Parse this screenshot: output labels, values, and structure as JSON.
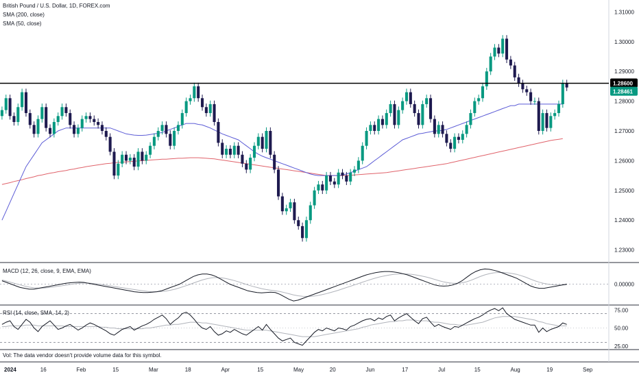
{
  "header": {
    "symbol": "British Pound / U.S. Dollar, 1D, FOREX.com",
    "sma200": "SMA (200, close)",
    "sma50": "SMA (50, close)"
  },
  "macd_label": "MACD (12, 26, close, 9, EMA, EMA)",
  "rsi_label": "RSI (14, close, SMA, 14, 2)",
  "volume_note": "Vol: The data vendor doesn't provide volume data for this symbol.",
  "colors": {
    "up": "#089981",
    "down": "#1e1a4f",
    "sma50": "#5b5bd6",
    "sma200": "#e0626a",
    "resistance": "#000000",
    "price_badge": "#089981",
    "grid": "#e6e9ee"
  },
  "chart_data": {
    "type": "candlestick",
    "x_tick_labels": [
      "2024",
      "16",
      "Feb",
      "15",
      "Mar",
      "18",
      "Apr",
      "15",
      "May",
      "20",
      "Jun",
      "17",
      "Jul",
      "15",
      "Aug",
      "19",
      "Sep"
    ],
    "price_axis": {
      "ticks": [
        "1.31000",
        "1.30000",
        "1.29000",
        "1.28000",
        "1.27000",
        "1.26000",
        "1.25000",
        "1.24000",
        "1.23000"
      ],
      "range": [
        1.226,
        1.314
      ]
    },
    "resistance_level": 1.286,
    "resistance_label": "1.28600",
    "last_price": 1.28461,
    "last_price_label": "1.28461",
    "close": [
      1.277,
      1.281,
      1.275,
      1.273,
      1.278,
      1.283,
      1.276,
      1.272,
      1.269,
      1.274,
      1.278,
      1.271,
      1.269,
      1.273,
      1.275,
      1.278,
      1.276,
      1.272,
      1.269,
      1.271,
      1.274,
      1.275,
      1.274,
      1.273,
      1.272,
      1.27,
      1.268,
      1.263,
      1.255,
      1.259,
      1.262,
      1.26,
      1.261,
      1.258,
      1.263,
      1.26,
      1.262,
      1.265,
      1.268,
      1.27,
      1.272,
      1.269,
      1.265,
      1.27,
      1.272,
      1.276,
      1.28,
      1.281,
      1.285,
      1.281,
      1.278,
      1.276,
      1.279,
      1.273,
      1.266,
      1.262,
      1.264,
      1.262,
      1.265,
      1.262,
      1.259,
      1.257,
      1.261,
      1.265,
      1.268,
      1.264,
      1.27,
      1.262,
      1.257,
      1.248,
      1.243,
      1.244,
      1.246,
      1.24,
      1.238,
      1.234,
      1.24,
      1.245,
      1.25,
      1.252,
      1.25,
      1.255,
      1.253,
      1.252,
      1.256,
      1.255,
      1.253,
      1.256,
      1.257,
      1.26,
      1.265,
      1.27,
      1.272,
      1.27,
      1.274,
      1.272,
      1.276,
      1.279,
      1.272,
      1.277,
      1.28,
      1.283,
      1.279,
      1.276,
      1.272,
      1.279,
      1.281,
      1.274,
      1.269,
      1.272,
      1.269,
      1.266,
      1.264,
      1.268,
      1.267,
      1.269,
      1.272,
      1.276,
      1.28,
      1.281,
      1.285,
      1.29,
      1.295,
      1.298,
      1.296,
      1.301,
      1.294,
      1.292,
      1.288,
      1.286,
      1.284,
      1.283,
      1.28,
      1.28,
      1.27,
      1.276,
      1.271,
      1.275,
      1.276,
      1.279,
      1.286,
      1.2846
    ],
    "sma50": [
      1.24,
      1.243,
      1.246,
      1.249,
      1.252,
      1.255,
      1.258,
      1.26,
      1.262,
      1.264,
      1.266,
      1.267,
      1.268,
      1.269,
      1.27,
      1.2705,
      1.271,
      1.271,
      1.271,
      1.271,
      1.271,
      1.271,
      1.271,
      1.271,
      1.271,
      1.271,
      1.271,
      1.271,
      1.2705,
      1.27,
      1.2695,
      1.269,
      1.2688,
      1.2686,
      1.2685,
      1.2685,
      1.2686,
      1.2688,
      1.269,
      1.2692,
      1.2695,
      1.27,
      1.2705,
      1.271,
      1.2715,
      1.272,
      1.2725,
      1.2725,
      1.2725,
      1.2722,
      1.272,
      1.2715,
      1.271,
      1.2703,
      1.2697,
      1.269,
      1.2685,
      1.268,
      1.2675,
      1.267,
      1.266,
      1.265,
      1.264,
      1.263,
      1.2622,
      1.2615,
      1.261,
      1.2605,
      1.26,
      1.2595,
      1.259,
      1.2585,
      1.258,
      1.2575,
      1.257,
      1.2565,
      1.256,
      1.2555,
      1.2552,
      1.255,
      1.255,
      1.255,
      1.255,
      1.255,
      1.255,
      1.2552,
      1.2555,
      1.256,
      1.2565,
      1.257,
      1.2575,
      1.258,
      1.259,
      1.26,
      1.261,
      1.262,
      1.263,
      1.264,
      1.265,
      1.266,
      1.267,
      1.2675,
      1.268,
      1.2685,
      1.269,
      1.2692,
      1.2695,
      1.2697,
      1.27,
      1.27,
      1.2702,
      1.2705,
      1.271,
      1.2715,
      1.272,
      1.2725,
      1.273,
      1.2735,
      1.274,
      1.2745,
      1.275,
      1.2755,
      1.276,
      1.2765,
      1.277,
      1.2775,
      1.278,
      1.2785,
      1.2785,
      1.279,
      1.279,
      1.279,
      1.279,
      1.279,
      1.279,
      1.279,
      1.279,
      1.279,
      1.279,
      1.279,
      1.279
    ],
    "sma200": [
      1.252,
      1.2523,
      1.2526,
      1.253,
      1.2533,
      1.2536,
      1.254,
      1.2543,
      1.2546,
      1.255,
      1.2552,
      1.2555,
      1.2558,
      1.256,
      1.2563,
      1.2565,
      1.2567,
      1.257,
      1.2572,
      1.2575,
      1.2577,
      1.258,
      1.2582,
      1.2584,
      1.2586,
      1.2588,
      1.259,
      1.2591,
      1.2593,
      1.2594,
      1.2595,
      1.2596,
      1.2597,
      1.2598,
      1.2599,
      1.26,
      1.2601,
      1.2602,
      1.2603,
      1.2604,
      1.2605,
      1.2605,
      1.2606,
      1.2607,
      1.2608,
      1.2608,
      1.2609,
      1.261,
      1.261,
      1.261,
      1.2609,
      1.2608,
      1.2607,
      1.2606,
      1.2604,
      1.2602,
      1.26,
      1.2598,
      1.2596,
      1.2594,
      1.2592,
      1.259,
      1.2588,
      1.2586,
      1.2584,
      1.2582,
      1.258,
      1.2578,
      1.2576,
      1.2574,
      1.2572,
      1.257,
      1.2568,
      1.2566,
      1.2564,
      1.2562,
      1.256,
      1.2558,
      1.2556,
      1.2554,
      1.2552,
      1.255,
      1.255,
      1.255,
      1.255,
      1.255,
      1.255,
      1.2551,
      1.2552,
      1.2553,
      1.2554,
      1.2555,
      1.2556,
      1.2557,
      1.2558,
      1.2559,
      1.256,
      1.2562,
      1.2564,
      1.2566,
      1.2568,
      1.257,
      1.2572,
      1.2574,
      1.2576,
      1.2578,
      1.258,
      1.2582,
      1.2584,
      1.2586,
      1.2588,
      1.259,
      1.2593,
      1.2596,
      1.2599,
      1.2602,
      1.2605,
      1.2608,
      1.2611,
      1.2614,
      1.2617,
      1.262,
      1.2623,
      1.2626,
      1.2629,
      1.2632,
      1.2635,
      1.2638,
      1.2641,
      1.2644,
      1.2647,
      1.265,
      1.2653,
      1.2656,
      1.2659,
      1.2662,
      1.2665,
      1.2668,
      1.267,
      1.2672,
      1.2674
    ],
    "macd": {
      "axis_ticks": [
        "0.00000"
      ],
      "range": [
        -0.012,
        0.012
      ],
      "macd_line": [
        0.002,
        0.001,
        0.0,
        -0.001,
        -0.002,
        -0.0025,
        -0.003,
        -0.003,
        -0.0025,
        -0.002,
        -0.0015,
        -0.001,
        -0.0005,
        0.0,
        0.0005,
        0.0008,
        0.001,
        0.0012,
        0.001,
        0.0005,
        0.0,
        -0.0005,
        -0.001,
        -0.0015,
        -0.002,
        -0.0025,
        -0.003,
        -0.0035,
        -0.004,
        -0.0045,
        -0.0048,
        -0.005,
        -0.005,
        -0.0048,
        -0.0045,
        -0.004,
        -0.003,
        -0.002,
        -0.001,
        0.0,
        0.0015,
        0.003,
        0.0045,
        0.0055,
        0.006,
        0.006,
        0.0055,
        0.0045,
        0.003,
        0.0015,
        0.0,
        -0.001,
        -0.002,
        -0.003,
        -0.004,
        -0.0045,
        -0.005,
        -0.0052,
        -0.005,
        -0.0048,
        -0.005,
        -0.006,
        -0.0075,
        -0.009,
        -0.01,
        -0.0095,
        -0.0085,
        -0.0075,
        -0.0065,
        -0.0055,
        -0.0045,
        -0.0035,
        -0.0025,
        -0.0015,
        -0.0005,
        0.0005,
        0.0015,
        0.0025,
        0.0035,
        0.0045,
        0.0055,
        0.0062,
        0.0068,
        0.0072,
        0.0075,
        0.0075,
        0.0072,
        0.0068,
        0.0062,
        0.0055,
        0.0045,
        0.0035,
        0.0025,
        0.0015,
        0.0005,
        -0.0005,
        -0.001,
        -0.0012,
        -0.001,
        -0.0005,
        0.0005,
        0.002,
        0.004,
        0.006,
        0.0075,
        0.0085,
        0.009,
        0.0088,
        0.0082,
        0.0075,
        0.0065,
        0.0055,
        0.0045,
        0.0035,
        0.002,
        0.0005,
        -0.001,
        -0.002,
        -0.0025,
        -0.0025,
        -0.002,
        -0.0015,
        -0.001,
        -0.0005,
        0.0
      ],
      "signal_line": [
        0.0025,
        0.0018,
        0.001,
        0.0003,
        -0.0005,
        -0.0012,
        -0.0018,
        -0.0022,
        -0.0024,
        -0.0023,
        -0.0021,
        -0.0018,
        -0.0014,
        -0.001,
        -0.0006,
        -0.0002,
        0.0002,
        0.0005,
        0.0007,
        0.0006,
        0.0004,
        0.0001,
        -0.0003,
        -0.0007,
        -0.0011,
        -0.0015,
        -0.002,
        -0.0024,
        -0.0028,
        -0.0032,
        -0.0036,
        -0.004,
        -0.0043,
        -0.0045,
        -0.0045,
        -0.0044,
        -0.0041,
        -0.0036,
        -0.003,
        -0.0022,
        -0.0013,
        -0.0004,
        0.0006,
        0.0016,
        0.0025,
        0.0032,
        0.0037,
        0.0039,
        0.0038,
        0.0034,
        0.0028,
        0.0021,
        0.0013,
        0.0004,
        -0.0005,
        -0.0013,
        -0.002,
        -0.0027,
        -0.0032,
        -0.0036,
        -0.004,
        -0.0044,
        -0.005,
        -0.0057,
        -0.0064,
        -0.0069,
        -0.0072,
        -0.0073,
        -0.0072,
        -0.0069,
        -0.0064,
        -0.0058,
        -0.0051,
        -0.0043,
        -0.0035,
        -0.0026,
        -0.0017,
        -0.0008,
        0.0001,
        0.001,
        0.0019,
        0.0028,
        0.0036,
        0.0043,
        0.0049,
        0.0054,
        0.0058,
        0.006,
        0.0061,
        0.006,
        0.0058,
        0.0054,
        0.0049,
        0.0043,
        0.0036,
        0.0028,
        0.002,
        0.0013,
        0.0008,
        0.0005,
        0.0005,
        0.0008,
        0.0014,
        0.0023,
        0.0034,
        0.0045,
        0.0055,
        0.0062,
        0.0067,
        0.0069,
        0.0069,
        0.0067,
        0.0063,
        0.0058,
        0.005,
        0.0041,
        0.003,
        0.002,
        0.0011,
        0.0004,
        -0.0001,
        -0.0004,
        -0.0005,
        -0.0005,
        -0.0004
      ]
    },
    "rsi": {
      "axis_ticks": [
        "75.00",
        "50.00",
        "25.00"
      ],
      "range": [
        20,
        80
      ],
      "bands": [
        70,
        30
      ],
      "rsi_line": [
        55,
        58,
        60,
        52,
        48,
        55,
        62,
        58,
        50,
        45,
        52,
        56,
        60,
        54,
        48,
        50,
        53,
        55,
        51,
        47,
        50,
        54,
        57,
        55,
        52,
        49,
        46,
        42,
        40,
        44,
        48,
        50,
        52,
        47,
        50,
        53,
        55,
        58,
        62,
        65,
        68,
        63,
        55,
        60,
        64,
        70,
        72,
        68,
        62,
        55,
        50,
        48,
        52,
        45,
        40,
        42,
        46,
        44,
        48,
        45,
        42,
        40,
        44,
        48,
        52,
        47,
        55,
        48,
        42,
        36,
        32,
        34,
        36,
        30,
        28,
        26,
        32,
        38,
        44,
        48,
        46,
        50,
        48,
        46,
        50,
        49,
        47,
        52,
        54,
        57,
        60,
        62,
        63,
        60,
        64,
        62,
        66,
        68,
        60,
        64,
        67,
        70,
        65,
        60,
        56,
        63,
        65,
        58,
        52,
        55,
        52,
        50,
        48,
        52,
        51,
        54,
        57,
        60,
        63,
        65,
        68,
        72,
        75,
        77,
        74,
        78,
        70,
        66,
        62,
        60,
        58,
        56,
        54,
        54,
        44,
        50,
        45,
        48,
        50,
        52,
        57,
        55
      ],
      "rsi_ma": [
        52,
        52,
        53,
        53,
        53,
        53,
        54,
        54,
        54,
        53,
        53,
        53,
        53,
        53,
        53,
        53,
        52,
        52,
        52,
        52,
        52,
        52,
        52,
        52,
        52,
        51,
        51,
        50,
        50,
        49,
        49,
        49,
        49,
        49,
        49,
        49,
        50,
        50,
        51,
        52,
        53,
        54,
        54,
        55,
        55,
        56,
        57,
        58,
        58,
        58,
        57,
        57,
        56,
        55,
        54,
        53,
        52,
        51,
        50,
        49,
        48,
        47,
        47,
        47,
        47,
        47,
        47,
        46,
        45,
        44,
        43,
        42,
        41,
        40,
        39,
        38,
        38,
        38,
        38,
        39,
        40,
        41,
        42,
        43,
        44,
        45,
        46,
        47,
        48,
        49,
        51,
        52,
        54,
        55,
        56,
        57,
        58,
        59,
        59,
        60,
        60,
        61,
        61,
        61,
        60,
        60,
        60,
        59,
        58,
        58,
        57,
        56,
        55,
        55,
        54,
        54,
        54,
        55,
        56,
        57,
        58,
        60,
        62,
        64,
        65,
        66,
        66,
        66,
        66,
        65,
        64,
        63,
        62,
        61,
        59,
        58,
        56,
        55,
        54,
        53,
        53,
        53
      ]
    }
  }
}
